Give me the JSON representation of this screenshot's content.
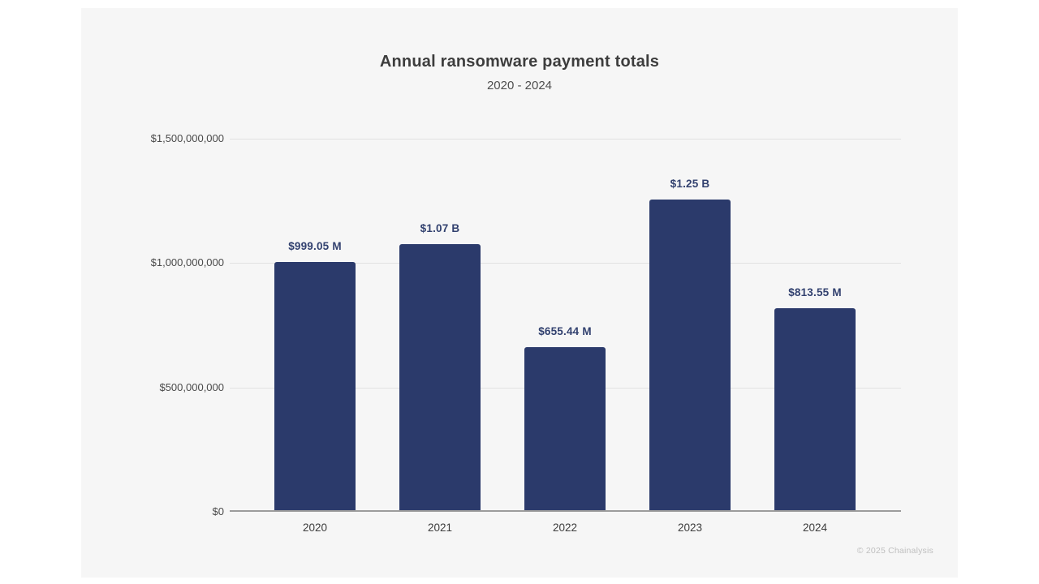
{
  "chart_data": {
    "type": "bar",
    "title": "Annual ransomware payment totals",
    "subtitle": "2020 - 2024",
    "categories": [
      "2020",
      "2021",
      "2022",
      "2023",
      "2024"
    ],
    "values": [
      999050000,
      1070000000,
      655440000,
      1250000000,
      813550000
    ],
    "value_labels": [
      "$999.05 M",
      "$1.07 B",
      "$655.44 M",
      "$1.25 B",
      "$813.55 M"
    ],
    "xlabel": "",
    "ylabel": "",
    "ylim": [
      0,
      1500000000
    ],
    "y_ticks": [
      {
        "value": 0,
        "label": "$0"
      },
      {
        "value": 500000000,
        "label": "$500,000,000"
      },
      {
        "value": 1000000000,
        "label": "$1,000,000,000"
      },
      {
        "value": 1500000000,
        "label": "$1,500,000,000"
      }
    ],
    "grid": true,
    "legend": "none",
    "bar_color": "#2b3a6b",
    "label_color": "#32416f"
  },
  "footer": {
    "credit": "© 2025 Chainalysis"
  }
}
